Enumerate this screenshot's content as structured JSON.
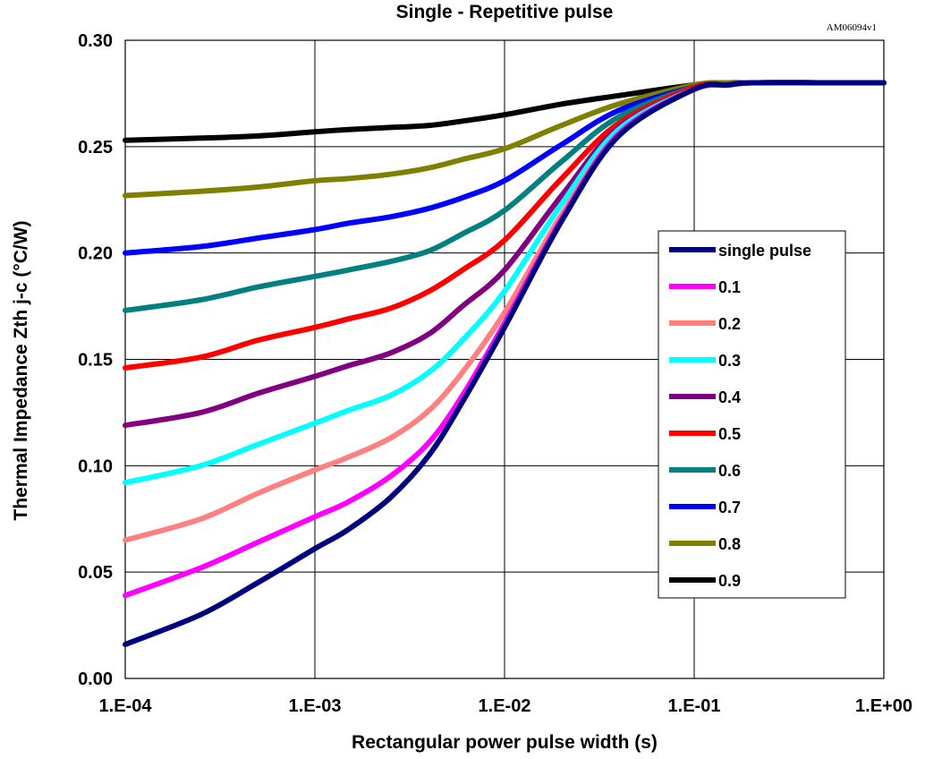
{
  "chart_data": {
    "type": "line",
    "title": "Single - Repetitive pulse",
    "code": "AM06094v1",
    "xlabel": "Rectangular power pulse width (s)",
    "ylabel": "Thermal Impedance Zth j-c (°C/W)",
    "x_scale": "log",
    "xlim": [
      0.0001,
      1
    ],
    "ylim": [
      0,
      0.3
    ],
    "x_ticks": [
      "1.E-04",
      "1.E-03",
      "1.E-02",
      "1.E-01",
      "1.E+00"
    ],
    "y_ticks": [
      "0.00",
      "0.05",
      "0.10",
      "0.15",
      "0.20",
      "0.25",
      "0.30"
    ],
    "grid": true,
    "legend_position": "right",
    "x": [
      0.0001,
      0.00025,
      0.0005,
      0.001,
      0.0015,
      0.0025,
      0.004,
      0.006,
      0.01,
      0.02,
      0.04,
      0.1,
      0.15,
      0.2,
      0.5,
      1
    ],
    "series": [
      {
        "name": "single pulse",
        "color": "#00007f",
        "values": [
          0.016,
          0.03,
          0.045,
          0.061,
          0.07,
          0.085,
          0.105,
          0.13,
          0.165,
          0.215,
          0.255,
          0.277,
          0.279,
          0.28,
          0.28,
          0.28
        ]
      },
      {
        "name": "0.1",
        "color": "#ff00ff",
        "values": [
          0.039,
          0.052,
          0.064,
          0.076,
          0.083,
          0.095,
          0.111,
          0.133,
          0.167,
          0.216,
          0.256,
          0.277,
          0.279,
          0.28,
          0.28,
          0.28
        ]
      },
      {
        "name": "0.2",
        "color": "#ff8080",
        "values": [
          0.065,
          0.075,
          0.087,
          0.098,
          0.104,
          0.113,
          0.126,
          0.144,
          0.172,
          0.218,
          0.256,
          0.277,
          0.279,
          0.28,
          0.28,
          0.28
        ]
      },
      {
        "name": "0.3",
        "color": "#00ffff",
        "values": [
          0.092,
          0.1,
          0.11,
          0.12,
          0.126,
          0.133,
          0.144,
          0.159,
          0.182,
          0.223,
          0.258,
          0.277,
          0.279,
          0.28,
          0.28,
          0.28
        ]
      },
      {
        "name": "0.4",
        "color": "#800080",
        "values": [
          0.119,
          0.125,
          0.134,
          0.142,
          0.147,
          0.153,
          0.162,
          0.175,
          0.192,
          0.227,
          0.259,
          0.277,
          0.279,
          0.28,
          0.28,
          0.28
        ]
      },
      {
        "name": "0.5",
        "color": "#ff0000",
        "values": [
          0.146,
          0.151,
          0.159,
          0.165,
          0.169,
          0.174,
          0.182,
          0.192,
          0.206,
          0.235,
          0.261,
          0.278,
          0.279,
          0.28,
          0.28,
          0.28
        ]
      },
      {
        "name": "0.6",
        "color": "#008080",
        "values": [
          0.173,
          0.178,
          0.184,
          0.189,
          0.192,
          0.196,
          0.201,
          0.209,
          0.22,
          0.243,
          0.264,
          0.278,
          0.279,
          0.28,
          0.28,
          0.28
        ]
      },
      {
        "name": "0.7",
        "color": "#0000ff",
        "values": [
          0.2,
          0.203,
          0.207,
          0.211,
          0.214,
          0.217,
          0.221,
          0.226,
          0.234,
          0.251,
          0.267,
          0.278,
          0.279,
          0.28,
          0.28,
          0.28
        ]
      },
      {
        "name": "0.8",
        "color": "#808000",
        "values": [
          0.227,
          0.229,
          0.231,
          0.234,
          0.235,
          0.237,
          0.24,
          0.244,
          0.249,
          0.26,
          0.27,
          0.279,
          0.28,
          0.28,
          0.28,
          0.28
        ]
      },
      {
        "name": "0.9",
        "color": "#000000",
        "values": [
          0.253,
          0.254,
          0.255,
          0.257,
          0.258,
          0.259,
          0.26,
          0.262,
          0.265,
          0.27,
          0.274,
          0.279,
          0.28,
          0.28,
          0.28,
          0.28
        ]
      }
    ]
  }
}
